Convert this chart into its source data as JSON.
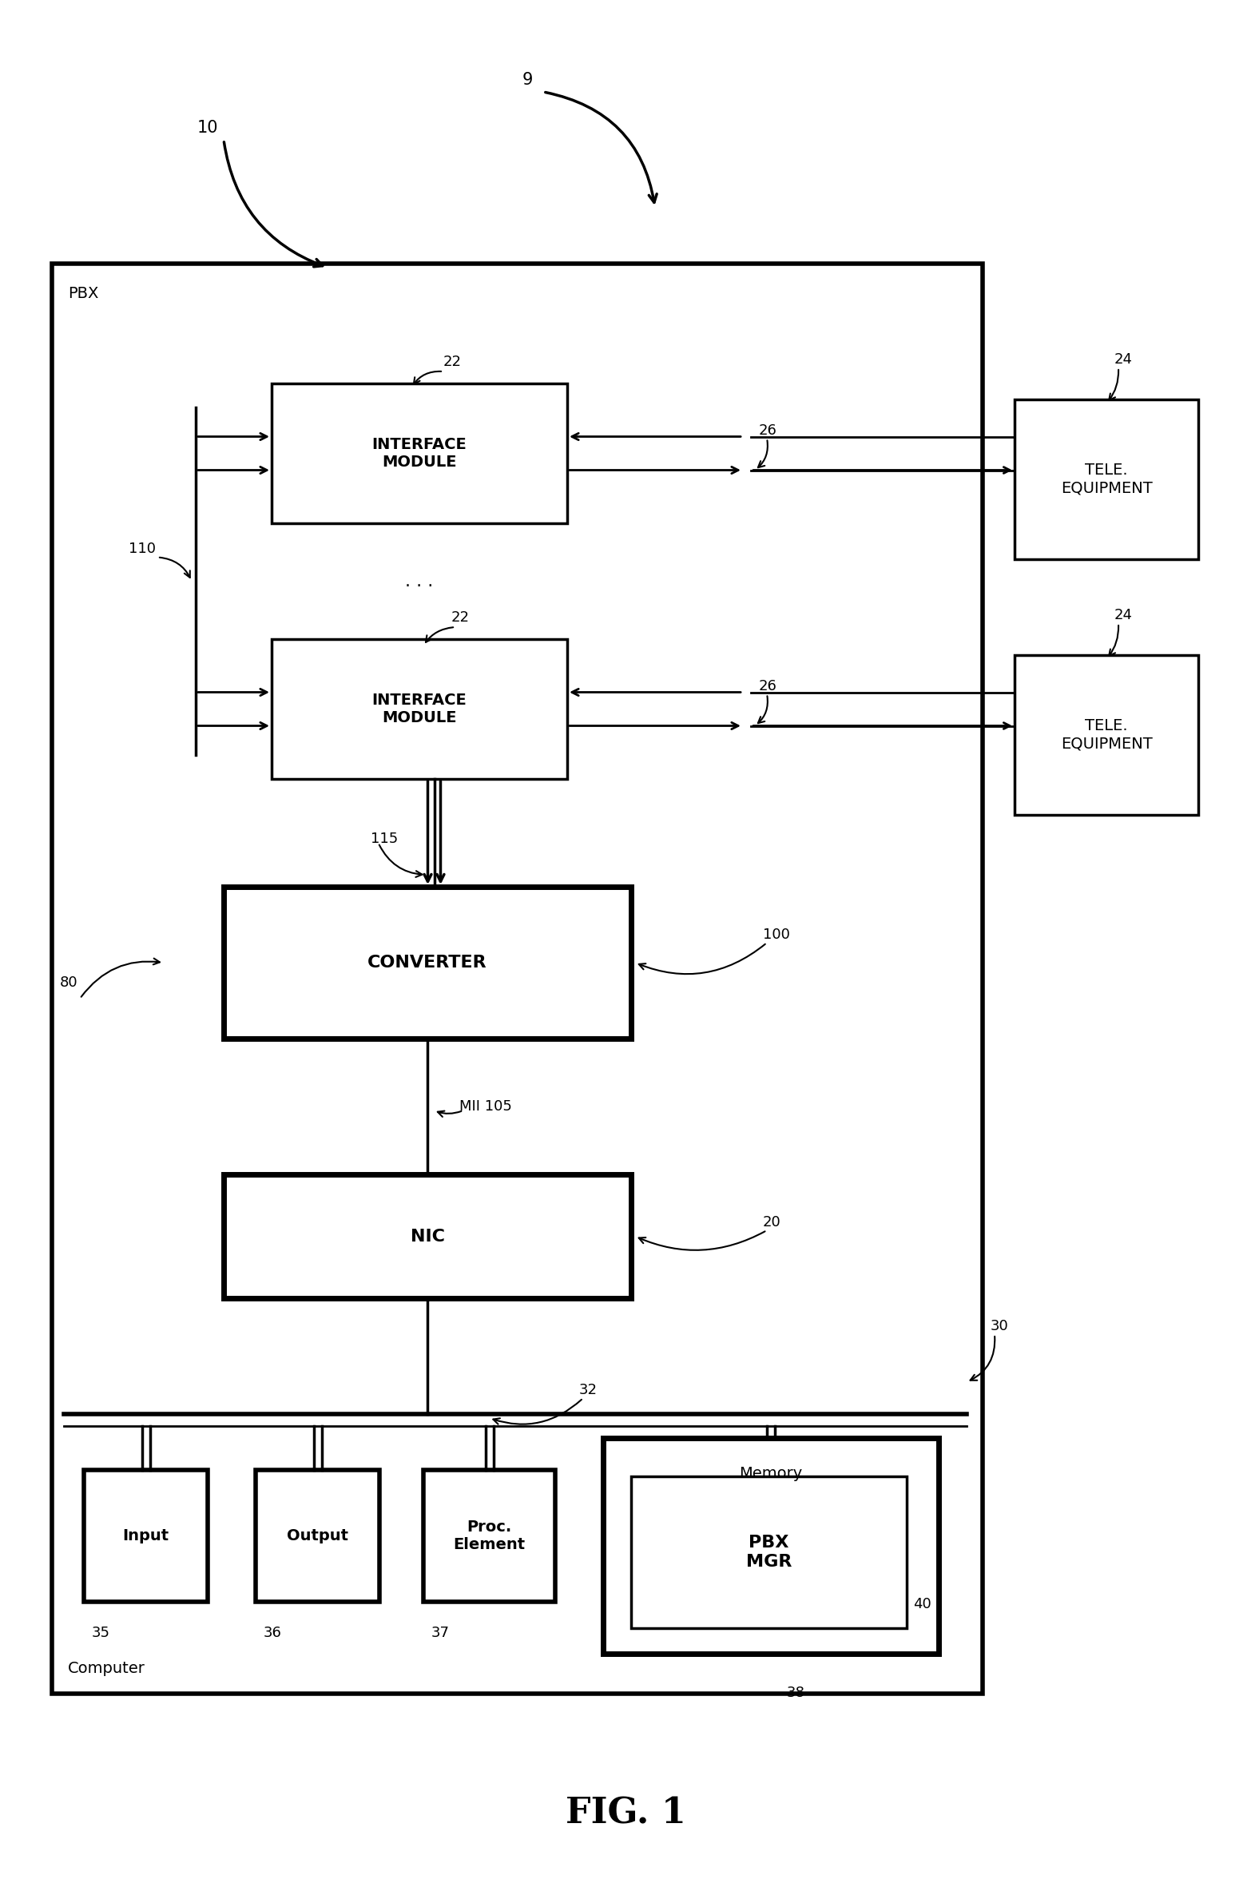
{
  "fig_title": "FIG. 1",
  "fig_title_fontsize": 32,
  "bg_color": "white",
  "figsize": [
    15.66,
    23.62
  ],
  "dpi": 100,
  "labels": {
    "pbx": "PBX",
    "interface_module": "INTERFACE\nMODULE",
    "converter": "CONVERTER",
    "nic": "NIC",
    "input": "Input",
    "output": "Output",
    "proc_element": "Proc.\nElement",
    "memory": "Memory",
    "pbx_mgr": "PBX\nMGR",
    "tele_equip": "TELE.\nEQUIPMENT",
    "computer": "Computer"
  },
  "ref_numbers": {
    "n9": "9",
    "n10": "10",
    "n20": "20",
    "n22a": "22",
    "n22b": "22",
    "n24a": "24",
    "n24b": "24",
    "n26a": "26",
    "n26b": "26",
    "n30": "30",
    "n32": "32",
    "n35": "35",
    "n36": "36",
    "n37": "37",
    "n38": "38",
    "n40": "40",
    "n80": "80",
    "n100": "100",
    "n105": "MII 105",
    "n110": "110",
    "n115": "115"
  }
}
